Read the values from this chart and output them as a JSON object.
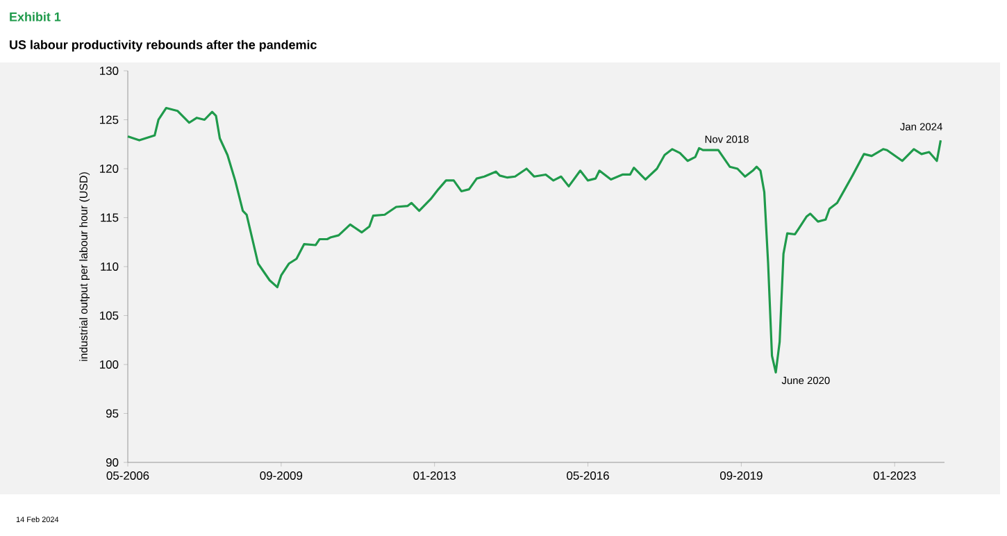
{
  "chart_data": {
    "type": "line",
    "title": "Exhibit 1",
    "subtitle": "US labour productivity rebounds after the pandemic",
    "ylabel": "industrial output per labour hour (USD)",
    "x": [
      "2006-05",
      "2006-08",
      "2006-12",
      "2007-01",
      "2007-03",
      "2007-06",
      "2007-09",
      "2007-11",
      "2008-01",
      "2008-03",
      "2008-04",
      "2008-05",
      "2008-07",
      "2008-09",
      "2008-11",
      "2008-12",
      "2009-03",
      "2009-06",
      "2009-08",
      "2009-09",
      "2009-11",
      "2010-01",
      "2010-03",
      "2010-06",
      "2010-07",
      "2010-09",
      "2010-10",
      "2010-12",
      "2011-03",
      "2011-06",
      "2011-08",
      "2011-09",
      "2011-12",
      "2012-03",
      "2012-06",
      "2012-07",
      "2012-09",
      "2012-12",
      "2013-02",
      "2013-04",
      "2013-06",
      "2013-08",
      "2013-10",
      "2013-12",
      "2014-02",
      "2014-05",
      "2014-06",
      "2014-08",
      "2014-10",
      "2015-01",
      "2015-03",
      "2015-06",
      "2015-08",
      "2015-10",
      "2015-12",
      "2016-03",
      "2016-05",
      "2016-07",
      "2016-08",
      "2016-11",
      "2017-02",
      "2017-04",
      "2017-05",
      "2017-08",
      "2017-11",
      "2018-01",
      "2018-03",
      "2018-05",
      "2018-07",
      "2018-09",
      "2018-10",
      "2018-11",
      "2019-01",
      "2019-03",
      "2019-06",
      "2019-08",
      "2019-10",
      "2019-12",
      "2020-01",
      "2020-02",
      "2020-03",
      "2020-04",
      "2020-05",
      "2020-06",
      "2020-07",
      "2020-08",
      "2020-09",
      "2020-11",
      "2020-12",
      "2021-02",
      "2021-03",
      "2021-05",
      "2021-07",
      "2021-08",
      "2021-10",
      "2021-12",
      "2022-02",
      "2022-05",
      "2022-07",
      "2022-10",
      "2022-11",
      "2023-03",
      "2023-06",
      "2023-08",
      "2023-10",
      "2023-12",
      "2024-01"
    ],
    "series": [
      {
        "color": "#1f9a4b",
        "values": [
          123.3,
          122.9,
          123.4,
          125.0,
          126.2,
          125.9,
          124.7,
          125.2,
          125.0,
          125.8,
          125.4,
          123.1,
          121.4,
          118.8,
          115.7,
          115.3,
          110.3,
          108.6,
          107.9,
          109.1,
          110.3,
          110.8,
          112.3,
          112.2,
          112.8,
          112.8,
          113.0,
          113.2,
          114.3,
          113.5,
          114.1,
          115.2,
          115.3,
          116.1,
          116.2,
          116.5,
          115.7,
          116.9,
          117.9,
          118.8,
          118.8,
          117.7,
          117.9,
          119.0,
          119.2,
          119.7,
          119.3,
          119.1,
          119.2,
          120.0,
          119.2,
          119.4,
          118.8,
          119.2,
          118.2,
          119.8,
          118.8,
          119.0,
          119.8,
          118.9,
          119.4,
          119.4,
          120.1,
          118.9,
          120.0,
          121.4,
          122.0,
          121.6,
          120.8,
          121.2,
          122.1,
          121.9,
          121.9,
          121.9,
          120.2,
          120.0,
          119.2,
          119.8,
          120.2,
          119.8,
          117.6,
          110.3,
          100.9,
          99.2,
          102.3,
          111.3,
          113.4,
          113.3,
          113.9,
          115.1,
          115.4,
          114.6,
          114.8,
          115.9,
          116.5,
          117.9,
          119.3,
          121.5,
          121.3,
          122.0,
          121.9,
          120.8,
          122.0,
          121.5,
          121.7,
          120.8,
          122.9
        ]
      }
    ],
    "xlim": [
      "2006-05",
      "2024-02"
    ],
    "ylim": [
      90,
      130
    ],
    "xticks": [
      {
        "value": "2006-05",
        "label": "05-2006"
      },
      {
        "value": "2009-09",
        "label": "09-2009"
      },
      {
        "value": "2013-01",
        "label": "01-2013"
      },
      {
        "value": "2016-05",
        "label": "05-2016"
      },
      {
        "value": "2019-09",
        "label": "09-2019"
      },
      {
        "value": "2023-01",
        "label": "01-2023"
      }
    ],
    "yticks": [
      90,
      95,
      100,
      105,
      110,
      115,
      120,
      125,
      130
    ],
    "annotations": [
      {
        "text": "Nov 2018",
        "x": "2018-11",
        "y": 121.9
      },
      {
        "text": "June 2020",
        "x": "2020-06",
        "y": 99.2
      },
      {
        "text": "Jan 2024",
        "x": "2024-01",
        "y": 122.9
      },
      "14 Feb 2024"
    ],
    "grid": false
  }
}
